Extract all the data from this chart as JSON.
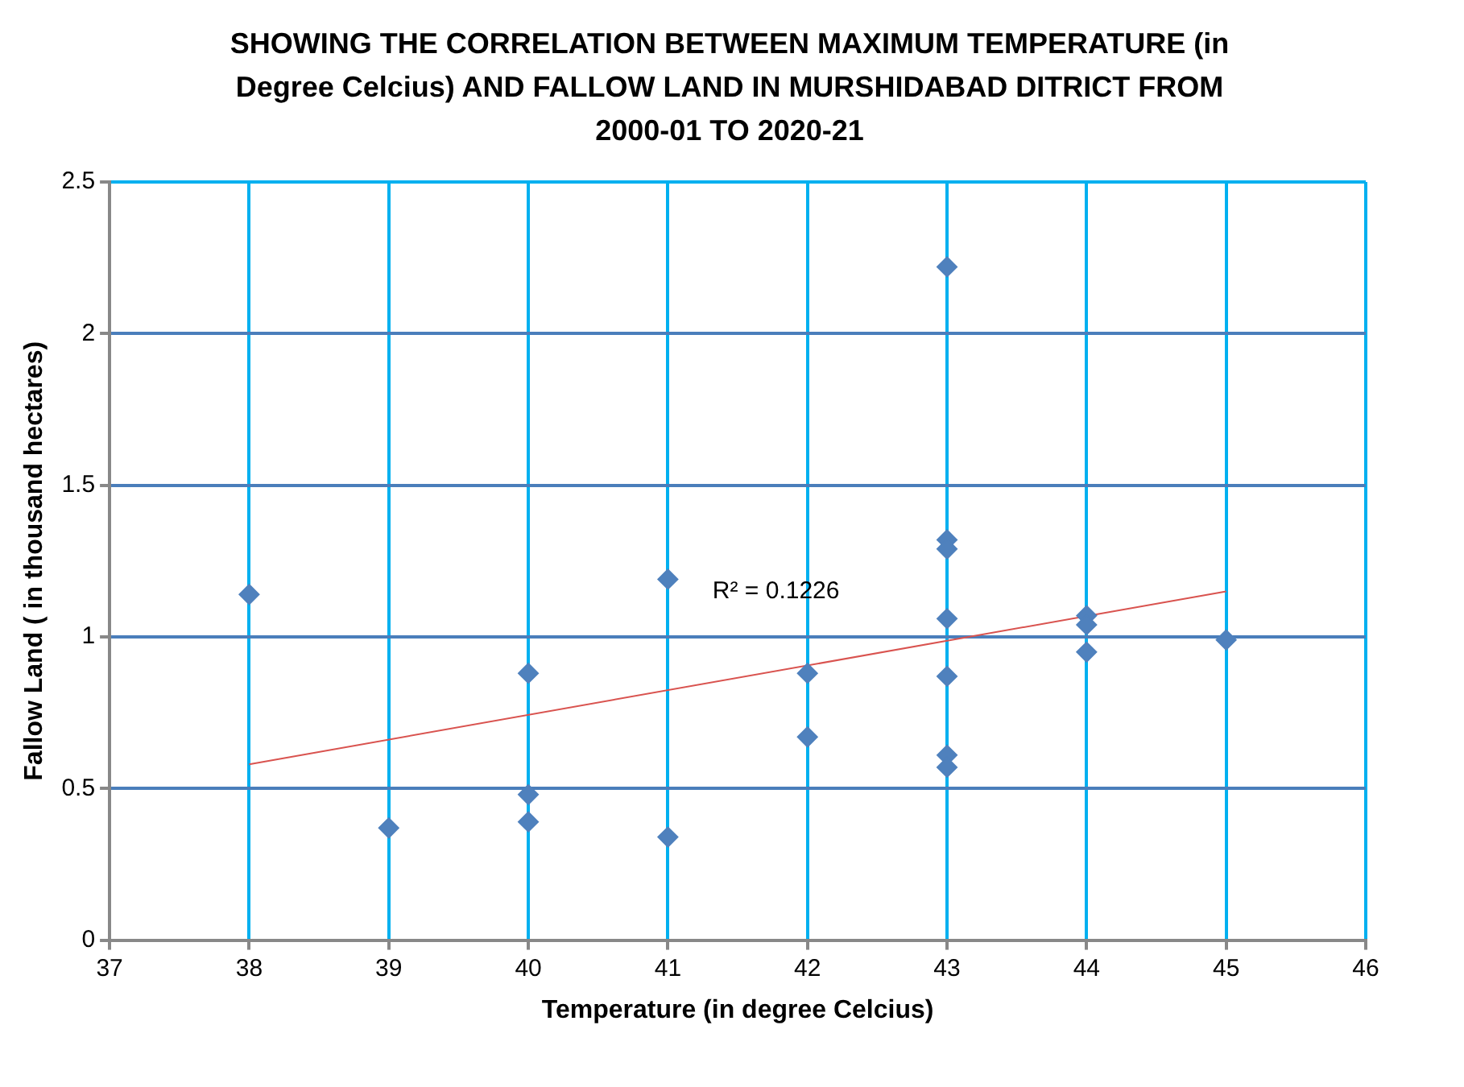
{
  "chart_data": {
    "type": "scatter",
    "title": "SHOWING THE CORRELATION BETWEEN  MAXIMUM TEMPERATURE (in Degree Celcius) AND FALLOW LAND IN MURSHIDABAD DITRICT FROM 2000-01 TO 2020-21",
    "xlabel": "Temperature (in degree Celcius)",
    "ylabel": "Fallow Land ( in thousand hectares)",
    "series": [
      {
        "color": "#4f81bd",
        "marker": "diamond",
        "x": [
          38,
          39,
          40,
          40,
          40,
          41,
          41,
          42,
          42,
          43,
          43,
          43,
          43,
          43,
          43,
          43,
          44,
          44,
          44,
          45
        ],
        "values": [
          1.14,
          0.37,
          0.88,
          0.48,
          0.39,
          1.19,
          0.34,
          0.88,
          0.67,
          2.22,
          1.32,
          1.29,
          1.06,
          0.87,
          0.61,
          0.57,
          1.07,
          1.04,
          0.95,
          0.99
        ]
      },
      {
        "type": "line",
        "color": "#d9534f",
        "x": [
          38,
          45
        ],
        "values": [
          0.58,
          1.15
        ]
      }
    ],
    "annotations": [
      "R² = 0.1226"
    ],
    "xlim": [
      37,
      46
    ],
    "xticks": [
      37,
      38,
      39,
      40,
      41,
      42,
      43,
      44,
      45,
      46
    ],
    "ylim": [
      0,
      2.5
    ],
    "yticks": [
      0,
      0.5,
      1,
      1.5,
      2,
      2.5
    ],
    "grid": true,
    "legend": false,
    "line_style": "solid"
  }
}
